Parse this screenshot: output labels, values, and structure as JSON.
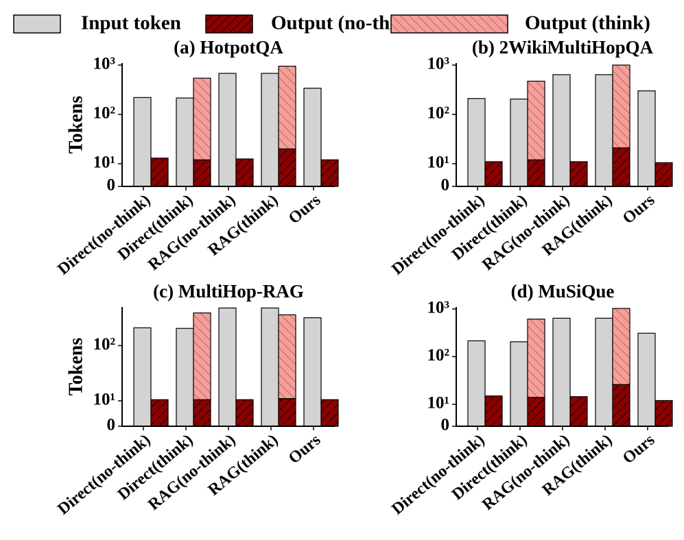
{
  "chart_data": [
    {
      "type": "bar",
      "title": "(a) HotpotQA",
      "ylabel": "Tokens",
      "yscale": "symlog",
      "linthresh": 10,
      "categories": [
        "Direct(no-think)",
        "Direct(think)",
        "RAG(no-think)",
        "RAG(think)",
        "Ours"
      ],
      "series": [
        {
          "name": "Input token",
          "color": "#d3d3d3",
          "values": [
            220,
            215,
            680,
            680,
            340
          ]
        },
        {
          "name": "Output (no-think)",
          "color": "#8b0000",
          "values": [
            13,
            12,
            12.5,
            20,
            12
          ]
        },
        {
          "name": "Output (think)",
          "color": "#f4a09a",
          "values": [
            null,
            530,
            null,
            930,
            null
          ]
        }
      ],
      "ylim": [
        0,
        1100
      ],
      "yticks": [
        0,
        {
          "value": 10,
          "label": "10¹"
        },
        {
          "value": 100,
          "label": "10²"
        },
        {
          "value": 1000,
          "label": "10³"
        }
      ]
    },
    {
      "type": "bar",
      "title": "(b) 2WikiMultiHopQA",
      "yscale": "symlog",
      "linthresh": 10,
      "categories": [
        "Direct(no-think)",
        "Direct(think)",
        "RAG(no-think)",
        "RAG(think)",
        "Ours"
      ],
      "series": [
        {
          "name": "Input token",
          "color": "#d3d3d3",
          "values": [
            210,
            205,
            640,
            640,
            300
          ]
        },
        {
          "name": "Output (no-think)",
          "color": "#8b0000",
          "values": [
            11,
            12,
            11,
            21,
            10.5
          ]
        },
        {
          "name": "Output (think)",
          "color": "#f4a09a",
          "values": [
            null,
            460,
            null,
            980,
            null
          ]
        }
      ],
      "ylim": [
        0,
        1100
      ],
      "yticks": [
        0,
        {
          "value": 10,
          "label": "10¹"
        },
        {
          "value": 100,
          "label": "10²"
        },
        {
          "value": 1000,
          "label": "10³"
        }
      ]
    },
    {
      "type": "bar",
      "title": "(c) MultiHop-RAG",
      "ylabel": "Tokens",
      "yscale": "symlog",
      "linthresh": 10,
      "categories": [
        "Direct(no-think)",
        "Direct(think)",
        "RAG(no-think)",
        "RAG(think)",
        "Ours"
      ],
      "series": [
        {
          "name": "Input token",
          "color": "#d3d3d3",
          "values": [
            210,
            205,
            480,
            480,
            320
          ]
        },
        {
          "name": "Output (no-think)",
          "color": "#8b0000",
          "values": [
            10.5,
            10.5,
            10.5,
            11,
            10.5
          ]
        },
        {
          "name": "Output (think)",
          "color": "#f4a09a",
          "values": [
            null,
            380,
            null,
            350,
            null
          ]
        }
      ],
      "ylim": [
        0,
        500
      ],
      "yticks": [
        0,
        {
          "value": 10,
          "label": "10¹"
        },
        {
          "value": 100,
          "label": "10²"
        }
      ]
    },
    {
      "type": "bar",
      "title": "(d) MuSiQue",
      "yscale": "symlog",
      "linthresh": 10,
      "categories": [
        "Direct(no-think)",
        "Direct(think)",
        "RAG(no-think)",
        "RAG(think)",
        "Ours"
      ],
      "series": [
        {
          "name": "Input token",
          "color": "#d3d3d3",
          "values": [
            215,
            205,
            640,
            640,
            310
          ]
        },
        {
          "name": "Output (no-think)",
          "color": "#8b0000",
          "values": [
            15,
            14,
            14.5,
            26,
            12
          ]
        },
        {
          "name": "Output (think)",
          "color": "#f4a09a",
          "values": [
            null,
            600,
            null,
            1000,
            null
          ]
        }
      ],
      "ylim": [
        0,
        1100
      ],
      "yticks": [
        0,
        {
          "value": 10,
          "label": "10¹"
        },
        {
          "value": 100,
          "label": "10²"
        },
        {
          "value": 1000,
          "label": "10³"
        }
      ]
    }
  ]
}
